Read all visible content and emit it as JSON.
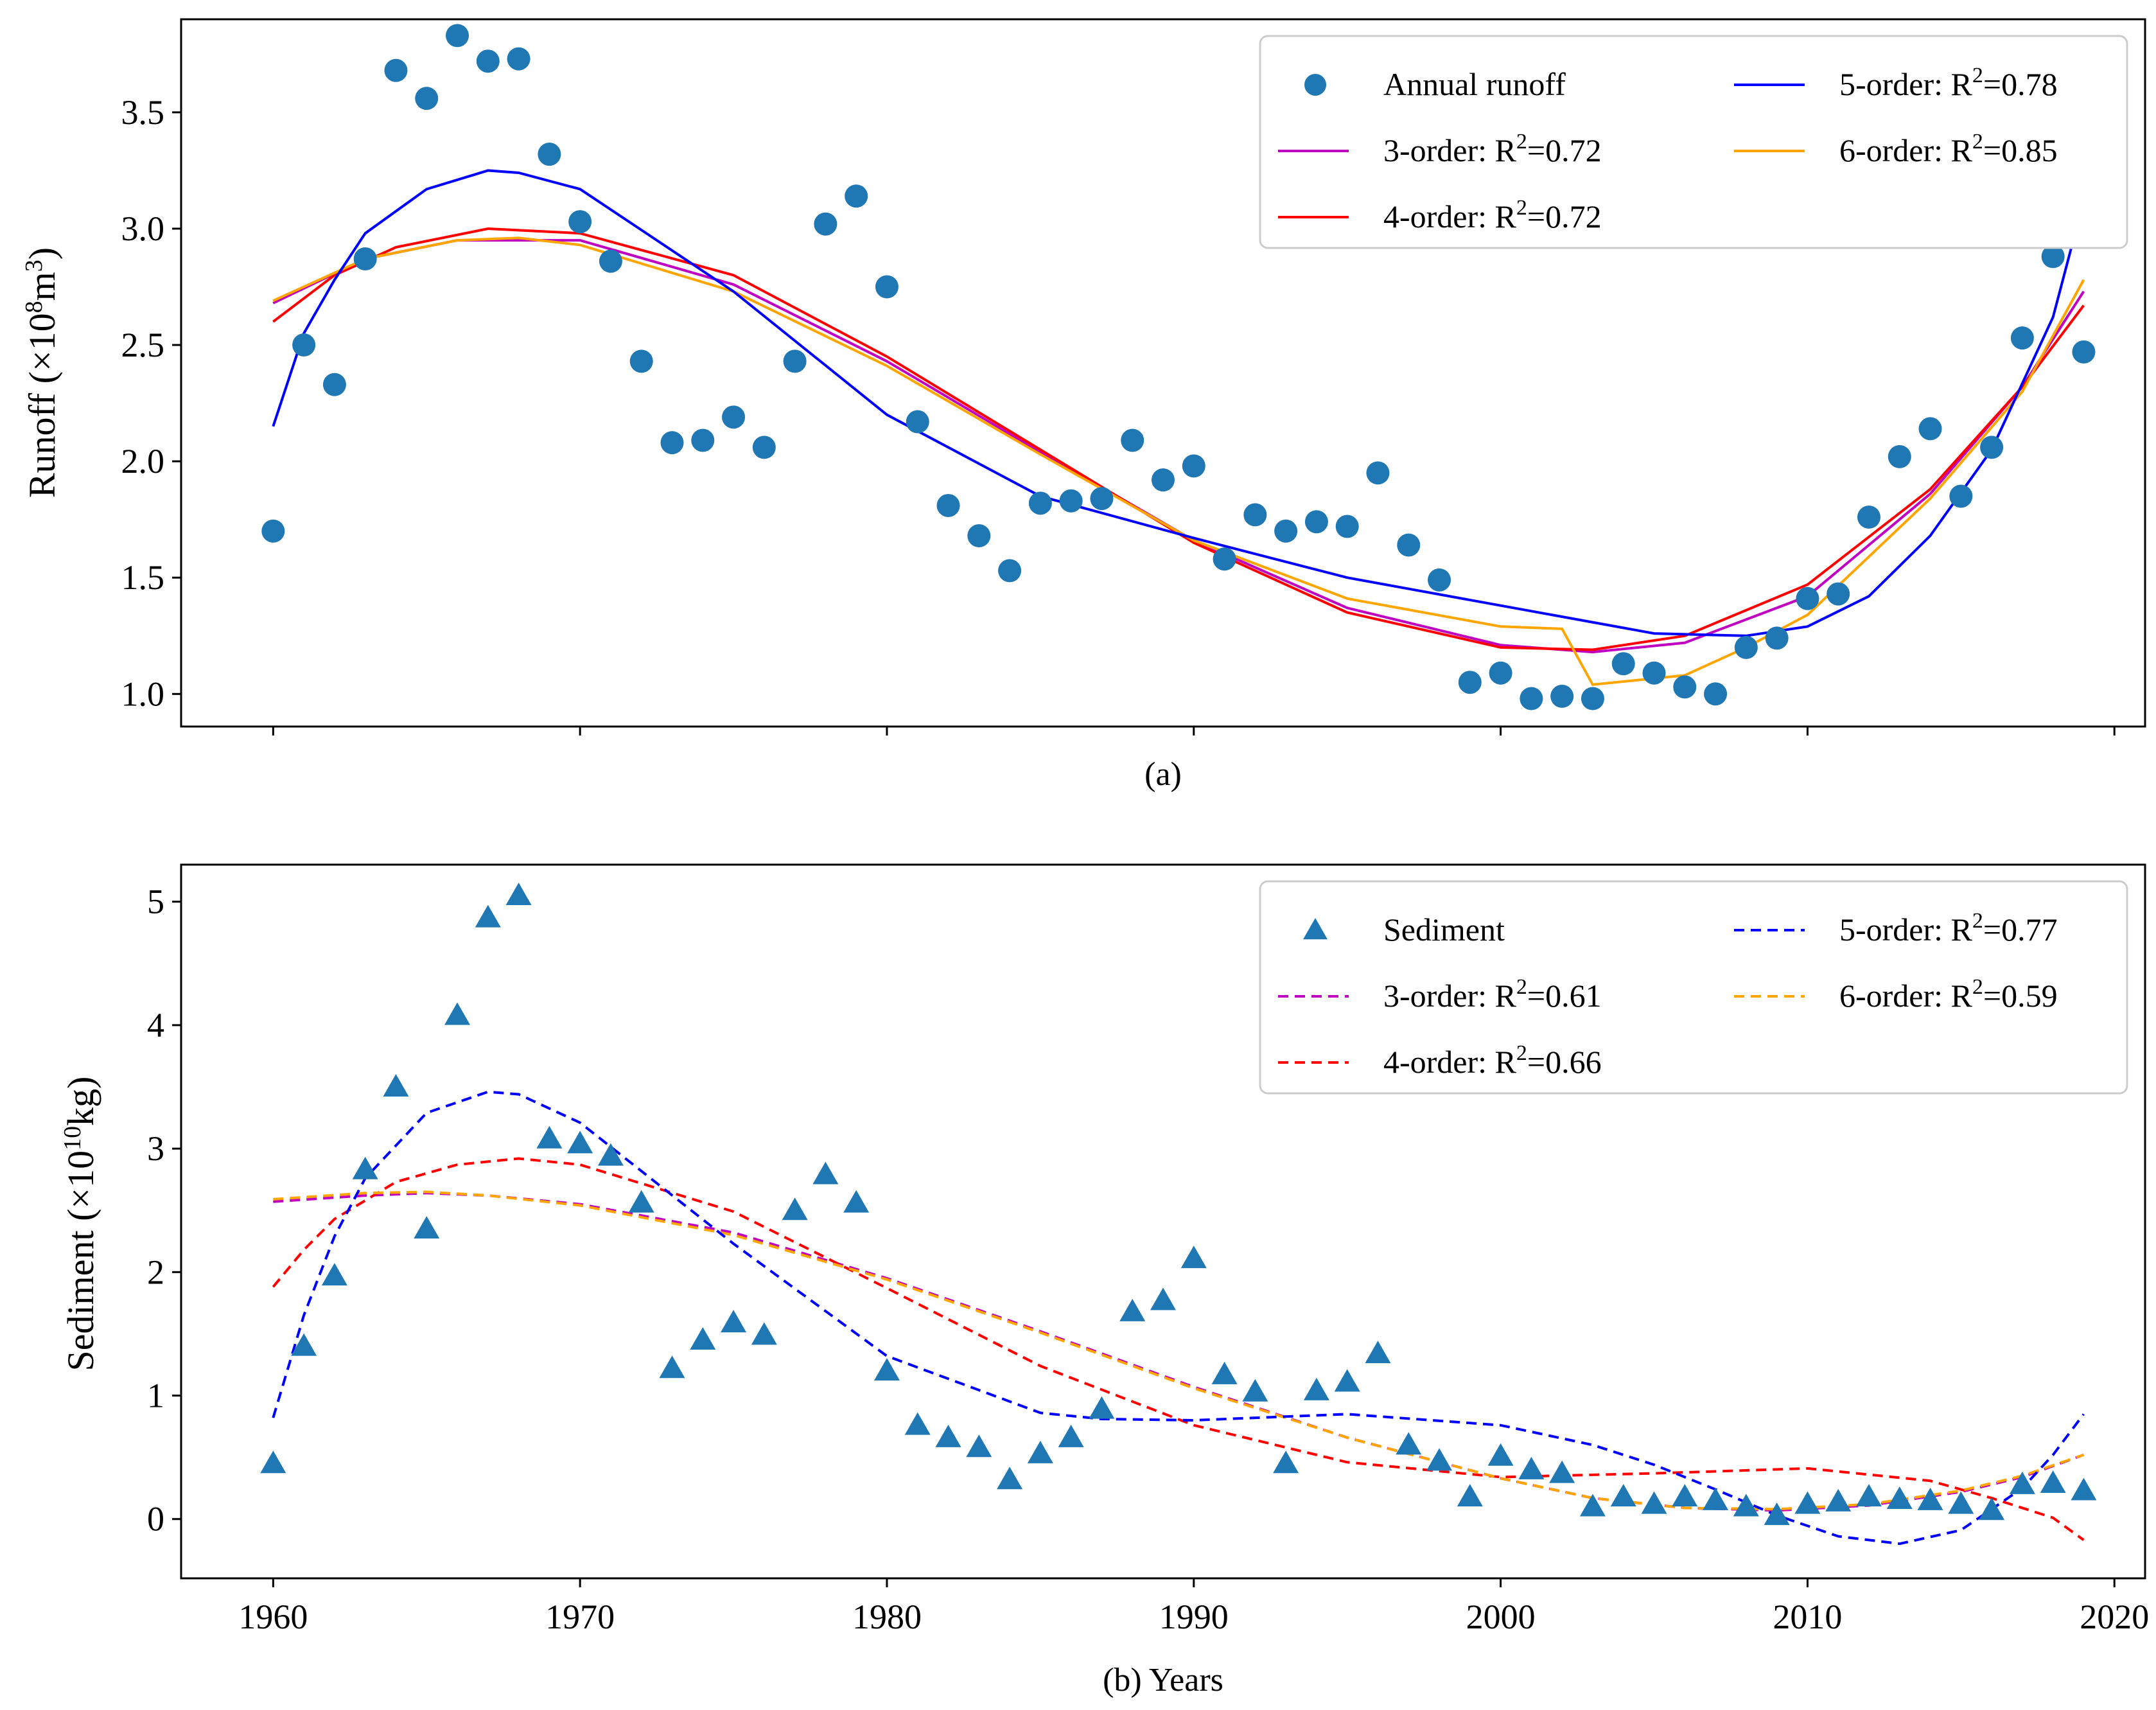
{
  "figure": {
    "panel_a_caption": "(a)",
    "panel_b_caption": "(b) Years"
  },
  "colors": {
    "points": "#1f77b4",
    "order3": "#c000c0",
    "order4": "#ff0000",
    "order5": "#0000ff",
    "order6": "#ffa500"
  },
  "chart_data": [
    {
      "type": "scatter",
      "panel": "a",
      "ylabel_prefix": "Runoff (",
      "ylabel_unit": "×10",
      "ylabel_exp": "8",
      "ylabel_suffix": "m",
      "ylabel_exp2": "3",
      "ylabel_close": ")",
      "xlabel": "(a)",
      "xlim": [
        1957,
        2021
      ],
      "ylim": [
        0.86,
        3.9
      ],
      "x_ticks": [
        1960,
        1970,
        1980,
        1990,
        2000,
        2010,
        2020
      ],
      "y_ticks": [
        "1.0",
        "1.5",
        "2.0",
        "2.5",
        "3.0",
        "3.5"
      ],
      "y_tick_values": [
        1.0,
        1.5,
        2.0,
        2.5,
        3.0,
        3.5
      ],
      "legend_position": "top-right",
      "legend": [
        {
          "key": "points",
          "label": "Annual runoff",
          "marker": "circle"
        },
        {
          "key": "order3",
          "label_prefix": "3-order: R",
          "sup": "2",
          "label_suffix": "=0.72",
          "line": "solid"
        },
        {
          "key": "order4",
          "label_prefix": "4-order: R",
          "sup": "2",
          "label_suffix": "=0.72",
          "line": "solid"
        },
        {
          "key": "order5",
          "label_prefix": "5-order: R",
          "sup": "2",
          "label_suffix": "=0.78",
          "line": "solid"
        },
        {
          "key": "order6",
          "label_prefix": "6-order: R",
          "sup": "2",
          "label_suffix": "=0.85",
          "line": "solid"
        }
      ],
      "x": [
        1960,
        1961,
        1962,
        1963,
        1964,
        1965,
        1966,
        1967,
        1968,
        1969,
        1970,
        1971,
        1972,
        1973,
        1974,
        1975,
        1976,
        1977,
        1978,
        1979,
        1980,
        1981,
        1982,
        1983,
        1984,
        1985,
        1986,
        1987,
        1988,
        1989,
        1990,
        1991,
        1992,
        1993,
        1994,
        1995,
        1996,
        1997,
        1998,
        1999,
        2000,
        2001,
        2002,
        2003,
        2004,
        2005,
        2006,
        2007,
        2008,
        2009,
        2010,
        2011,
        2012,
        2013,
        2014,
        2015,
        2016,
        2017,
        2018,
        2019
      ],
      "points": [
        1.7,
        2.5,
        2.33,
        2.87,
        3.68,
        3.56,
        3.83,
        3.72,
        3.73,
        3.32,
        3.03,
        2.86,
        2.43,
        2.08,
        2.09,
        2.19,
        2.06,
        2.43,
        3.02,
        3.14,
        2.75,
        2.17,
        1.81,
        1.68,
        1.53,
        1.82,
        1.83,
        1.84,
        2.09,
        1.92,
        1.98,
        1.58,
        1.77,
        1.7,
        1.74,
        1.72,
        1.95,
        1.64,
        1.49,
        1.05,
        1.09,
        0.98,
        0.99,
        0.98,
        1.13,
        1.09,
        1.03,
        1.0,
        1.2,
        1.24,
        1.41,
        1.43,
        1.76,
        2.02,
        2.14,
        1.85,
        2.06,
        2.53,
        2.88,
        2.47
      ],
      "fits": {
        "order3": {
          "x": [
            1960,
            1963,
            1966,
            1970,
            1975,
            1980,
            1985,
            1990,
            1995,
            2000,
            2003,
            2006,
            2010,
            2014,
            2017,
            2019
          ],
          "y": [
            2.68,
            2.87,
            2.95,
            2.95,
            2.76,
            2.43,
            2.04,
            1.66,
            1.37,
            1.21,
            1.18,
            1.22,
            1.42,
            1.86,
            2.32,
            2.73
          ]
        },
        "order4": {
          "x": [
            1960,
            1962,
            1964,
            1967,
            1970,
            1975,
            1980,
            1985,
            1990,
            1995,
            2000,
            2003,
            2006,
            2010,
            2014,
            2017,
            2019
          ],
          "y": [
            2.6,
            2.8,
            2.92,
            3.0,
            2.98,
            2.8,
            2.45,
            2.05,
            1.65,
            1.35,
            1.2,
            1.19,
            1.25,
            1.47,
            1.88,
            2.32,
            2.67
          ]
        },
        "order5": {
          "x": [
            1960,
            1961,
            1962,
            1963,
            1965,
            1967,
            1968,
            1970,
            1975,
            1980,
            1985,
            1990,
            1995,
            2000,
            2005,
            2008,
            2010,
            2012,
            2014,
            2016,
            2018,
            2019
          ],
          "y": [
            2.15,
            2.55,
            2.78,
            2.98,
            3.17,
            3.25,
            3.24,
            3.17,
            2.73,
            2.2,
            1.85,
            1.67,
            1.5,
            1.38,
            1.26,
            1.25,
            1.29,
            1.42,
            1.68,
            2.05,
            2.62,
            3.12
          ]
        },
        "order6": {
          "x": [
            1960,
            1963,
            1966,
            1968,
            1970,
            1975,
            1980,
            1985,
            1990,
            1995,
            2000,
            2002,
            2003,
            2006,
            2008,
            2010,
            2014,
            2017,
            2019
          ],
          "y": [
            2.69,
            2.87,
            2.95,
            2.96,
            2.93,
            2.73,
            2.41,
            2.03,
            1.66,
            1.41,
            1.29,
            1.28,
            1.04,
            1.08,
            1.2,
            1.34,
            1.84,
            2.3,
            2.78
          ]
        }
      }
    },
    {
      "type": "scatter",
      "panel": "b",
      "ylabel_prefix": "Sediment (",
      "ylabel_unit": "×10",
      "ylabel_exp": "10",
      "ylabel_suffix": "kg",
      "ylabel_close": ")",
      "xlabel": "(b) Years",
      "xlim": [
        1957,
        2021
      ],
      "ylim": [
        -0.48,
        5.3
      ],
      "x_ticks": [
        1960,
        1970,
        1980,
        1990,
        2000,
        2010,
        2020
      ],
      "y_ticks": [
        "0",
        "1",
        "2",
        "3",
        "4",
        "5"
      ],
      "y_tick_values": [
        0,
        1,
        2,
        3,
        4,
        5
      ],
      "legend_position": "top-right",
      "legend": [
        {
          "key": "points",
          "label": "Sediment",
          "marker": "triangle"
        },
        {
          "key": "order3",
          "label_prefix": "3-order: R",
          "sup": "2",
          "label_suffix": "=0.61",
          "line": "dashed"
        },
        {
          "key": "order4",
          "label_prefix": "4-order: R",
          "sup": "2",
          "label_suffix": "=0.66",
          "line": "dashed"
        },
        {
          "key": "order5",
          "label_prefix": "5-order: R",
          "sup": "2",
          "label_suffix": "=0.77",
          "line": "dashed"
        },
        {
          "key": "order6",
          "label_prefix": "6-order: R",
          "sup": "2",
          "label_suffix": "=0.59",
          "line": "dashed"
        }
      ],
      "x": [
        1960,
        1961,
        1962,
        1963,
        1964,
        1965,
        1966,
        1967,
        1968,
        1969,
        1970,
        1971,
        1972,
        1973,
        1974,
        1975,
        1976,
        1977,
        1978,
        1979,
        1980,
        1981,
        1982,
        1983,
        1984,
        1985,
        1986,
        1987,
        1988,
        1989,
        1990,
        1991,
        1992,
        1993,
        1994,
        1995,
        1996,
        1997,
        1998,
        1999,
        2000,
        2001,
        2002,
        2003,
        2004,
        2005,
        2006,
        2007,
        2008,
        2009,
        2010,
        2011,
        2012,
        2013,
        2014,
        2015,
        2016,
        2017,
        2018,
        2019
      ],
      "points": [
        0.45,
        1.4,
        1.97,
        2.83,
        3.5,
        2.35,
        4.08,
        4.87,
        5.05,
        3.08,
        3.04,
        2.94,
        2.56,
        1.22,
        1.45,
        1.59,
        1.49,
        2.5,
        2.79,
        2.56,
        1.2,
        0.76,
        0.66,
        0.58,
        0.32,
        0.53,
        0.66,
        0.89,
        1.68,
        1.77,
        2.11,
        1.17,
        1.03,
        0.45,
        1.04,
        1.11,
        1.34,
        0.6,
        0.47,
        0.18,
        0.51,
        0.4,
        0.37,
        0.1,
        0.18,
        0.12,
        0.18,
        0.15,
        0.1,
        0.03,
        0.12,
        0.14,
        0.18,
        0.16,
        0.15,
        0.12,
        0.07,
        0.28,
        0.29,
        0.23
      ],
      "fits": {
        "order3": {
          "x": [
            1960,
            1963,
            1965,
            1967,
            1970,
            1975,
            1980,
            1985,
            1990,
            1995,
            2000,
            2003,
            2006,
            2009,
            2012,
            2015,
            2017,
            2019
          ],
          "y": [
            2.57,
            2.62,
            2.64,
            2.62,
            2.55,
            2.32,
            1.95,
            1.52,
            1.07,
            0.66,
            0.33,
            0.17,
            0.09,
            0.07,
            0.11,
            0.22,
            0.34,
            0.52
          ]
        },
        "order4": {
          "x": [
            1960,
            1961,
            1962,
            1964,
            1966,
            1968,
            1970,
            1975,
            1980,
            1985,
            1990,
            1995,
            2000,
            2005,
            2010,
            2014,
            2016,
            2018,
            2019
          ],
          "y": [
            1.88,
            2.18,
            2.43,
            2.73,
            2.87,
            2.92,
            2.87,
            2.49,
            1.87,
            1.24,
            0.76,
            0.46,
            0.34,
            0.37,
            0.41,
            0.31,
            0.17,
            0.01,
            -0.17
          ]
        },
        "order5": {
          "x": [
            1960,
            1961,
            1962,
            1963,
            1965,
            1967,
            1968,
            1970,
            1975,
            1980,
            1985,
            1987,
            1990,
            1995,
            2000,
            2003,
            2005,
            2007,
            2009,
            2011,
            2013,
            2015,
            2017,
            2018,
            2019
          ],
          "y": [
            0.82,
            1.65,
            2.29,
            2.76,
            3.29,
            3.46,
            3.44,
            3.21,
            2.23,
            1.32,
            0.86,
            0.81,
            0.8,
            0.85,
            0.76,
            0.6,
            0.44,
            0.24,
            0.03,
            -0.14,
            -0.2,
            -0.09,
            0.25,
            0.52,
            0.85
          ]
        },
        "order6": {
          "x": [
            1960,
            1963,
            1965,
            1967,
            1970,
            1975,
            1980,
            1985,
            1990,
            1995,
            2000,
            2003,
            2006,
            2009,
            2012,
            2015,
            2017,
            2019
          ],
          "y": [
            2.59,
            2.64,
            2.65,
            2.62,
            2.54,
            2.3,
            1.94,
            1.51,
            1.06,
            0.66,
            0.33,
            0.17,
            0.09,
            0.08,
            0.12,
            0.23,
            0.35,
            0.52
          ]
        }
      }
    }
  ]
}
